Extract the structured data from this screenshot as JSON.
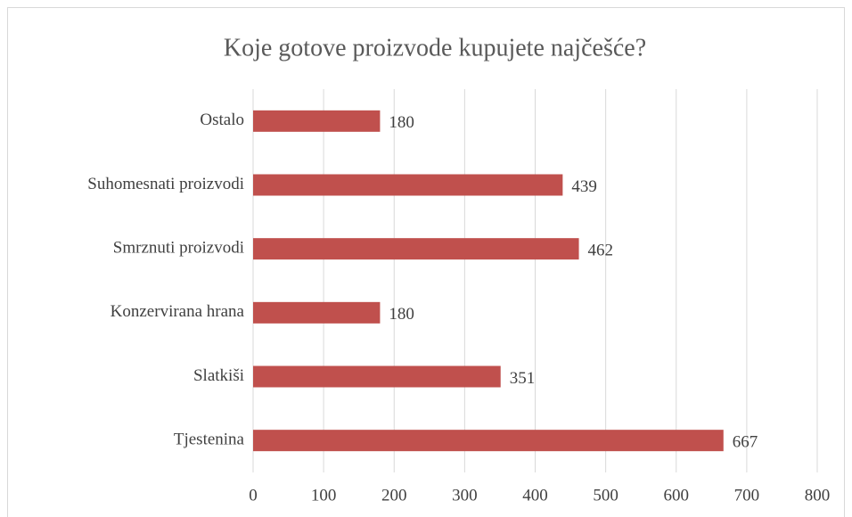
{
  "chart_data": {
    "type": "bar",
    "orientation": "horizontal",
    "title": "Koje gotove proizvode kupujete najčešće?",
    "categories": [
      "Ostalo",
      "Suhomesnati proizvodi",
      "Smrznuti proizvodi",
      "Konzervirana hrana",
      "Slatkiši",
      "Tjestenina"
    ],
    "values": [
      180,
      439,
      462,
      180,
      351,
      667
    ],
    "color": "#c0504d",
    "xlim": [
      0,
      800
    ],
    "xticks": [
      0,
      100,
      200,
      300,
      400,
      500,
      600,
      700,
      800
    ],
    "grid": true,
    "data_labels": true
  }
}
